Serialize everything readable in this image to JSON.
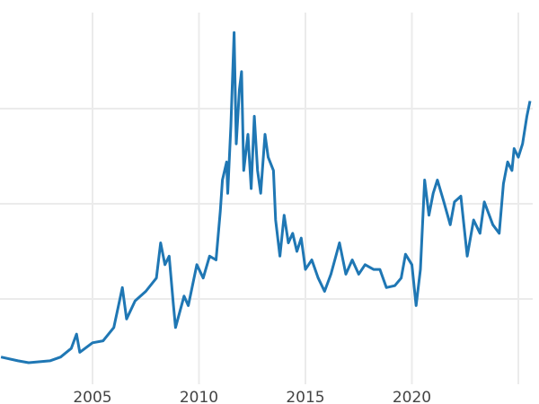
{
  "chart_data": {
    "type": "line",
    "title": "",
    "xlabel": "",
    "ylabel": "",
    "xlim": [
      2000.65,
      2025.7
    ],
    "ylim": [
      0,
      40
    ],
    "x_ticks": [
      2005,
      2010,
      2015,
      2020,
      2025
    ],
    "x_tick_labels": [
      "2005",
      "2010",
      "2015",
      "2020",
      ""
    ],
    "y_gridlines": [
      10,
      20,
      30
    ],
    "grid": true,
    "legend": "none",
    "line_color": "#1f77b4",
    "grid_color": "#ebebeb",
    "series": [
      {
        "x": [
          2000.7,
          2001.5,
          2002,
          2003,
          2003.5,
          2004,
          2004.25,
          2004.4,
          2005,
          2005.5,
          2006,
          2006.4,
          2006.6,
          2007,
          2007.5,
          2008,
          2008.2,
          2008.4,
          2008.6,
          2008.8,
          2008.9,
          2009.3,
          2009.5,
          2009.9,
          2010.2,
          2010.5,
          2010.8,
          2011,
          2011.1,
          2011.3,
          2011.35,
          2011.5,
          2011.65,
          2011.75,
          2011.9,
          2012,
          2012.1,
          2012.3,
          2012.45,
          2012.6,
          2012.75,
          2012.9,
          2013.1,
          2013.25,
          2013.5,
          2013.6,
          2013.8,
          2014,
          2014.2,
          2014.4,
          2014.6,
          2014.8,
          2015,
          2015.3,
          2015.6,
          2015.9,
          2016.2,
          2016.6,
          2016.9,
          2017.2,
          2017.5,
          2017.8,
          2018.2,
          2018.5,
          2018.8,
          2019.2,
          2019.5,
          2019.7,
          2020,
          2020.2,
          2020.4,
          2020.6,
          2020.8,
          2021,
          2021.2,
          2021.5,
          2021.8,
          2022,
          2022.3,
          2022.6,
          2022.9,
          2023.2,
          2023.4,
          2023.8,
          2024.1,
          2024.3,
          2024.5,
          2024.7,
          2024.8,
          2025,
          2025.2,
          2025.4,
          2025.55
        ],
        "y": [
          3.9,
          3.5,
          3.3,
          3.5,
          3.9,
          4.8,
          6.3,
          4.4,
          5.4,
          5.6,
          7.0,
          11.2,
          7.9,
          9.8,
          10.8,
          12.2,
          15.9,
          13.6,
          14.5,
          9.3,
          7.0,
          10.3,
          9.3,
          13.6,
          12.2,
          14.5,
          14.1,
          19.2,
          22.5,
          24.4,
          21.1,
          28.2,
          38.0,
          26.3,
          32.0,
          33.9,
          23.5,
          27.3,
          21.6,
          29.2,
          23.5,
          21.1,
          27.3,
          24.9,
          23.5,
          18.3,
          14.5,
          18.8,
          15.9,
          16.9,
          15.0,
          16.4,
          13.1,
          14.1,
          12.2,
          10.8,
          12.6,
          15.9,
          12.6,
          14.1,
          12.6,
          13.6,
          13.1,
          13.1,
          11.2,
          11.4,
          12.2,
          14.7,
          13.6,
          9.3,
          13.1,
          22.5,
          18.8,
          21.1,
          22.5,
          20.2,
          17.8,
          20.2,
          20.8,
          14.5,
          18.3,
          16.9,
          20.2,
          17.8,
          16.9,
          22.1,
          24.4,
          23.5,
          25.8,
          24.9,
          26.3,
          29.2,
          30.8
        ]
      }
    ]
  }
}
